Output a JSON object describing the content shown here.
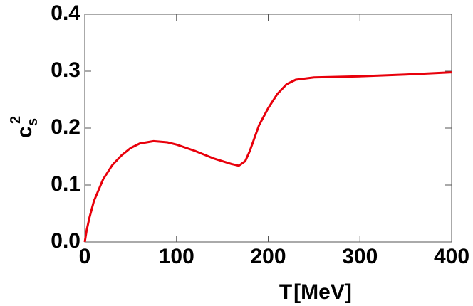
{
  "chart_data": {
    "type": "line",
    "x": [
      0,
      2,
      5,
      10,
      20,
      30,
      40,
      50,
      60,
      75,
      90,
      100,
      120,
      140,
      160,
      168,
      175,
      180,
      190,
      200,
      210,
      220,
      230,
      250,
      300,
      350,
      400
    ],
    "series": [
      {
        "color": "#e8000b",
        "values": [
          0,
          0.02,
          0.042,
          0.072,
          0.11,
          0.135,
          0.152,
          0.165,
          0.173,
          0.177,
          0.175,
          0.171,
          0.16,
          0.147,
          0.137,
          0.134,
          0.142,
          0.16,
          0.205,
          0.235,
          0.26,
          0.277,
          0.285,
          0.289,
          0.291,
          0.294,
          0.298
        ]
      }
    ],
    "xlim": [
      0,
      400
    ],
    "xticks": [
      0,
      100,
      200,
      300,
      400
    ],
    "ylim": [
      0,
      0.4
    ],
    "yticks": [
      {
        "value": 0,
        "label": "0.0"
      },
      0.1,
      0.2,
      0.3,
      0.4
    ],
    "xlabel": "T",
    "xunit": "[MeV]",
    "ylabel": {
      "base": "c",
      "sub": "s",
      "sup": "2"
    }
  }
}
